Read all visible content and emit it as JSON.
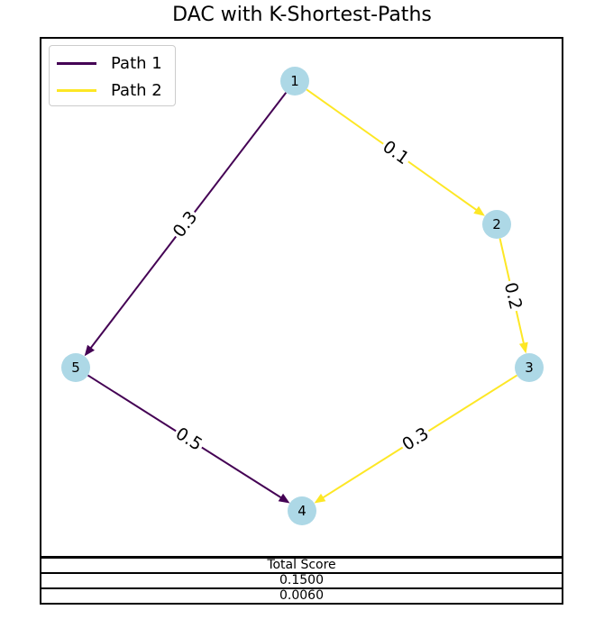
{
  "title": "DAC with K-Shortest-Paths",
  "legend": [
    {
      "label": "Path 1",
      "color": "#440154"
    },
    {
      "label": "Path 2",
      "color": "#fde725"
    }
  ],
  "nodes": [
    {
      "id": "1",
      "label": "1"
    },
    {
      "id": "2",
      "label": "2"
    },
    {
      "id": "3",
      "label": "3"
    },
    {
      "id": "4",
      "label": "4"
    },
    {
      "id": "5",
      "label": "5"
    }
  ],
  "edges": [
    {
      "from": "1",
      "to": "5",
      "weight": "0.3",
      "path": 1
    },
    {
      "from": "5",
      "to": "4",
      "weight": "0.5",
      "path": 1
    },
    {
      "from": "1",
      "to": "2",
      "weight": "0.1",
      "path": 2
    },
    {
      "from": "2",
      "to": "3",
      "weight": "0.2",
      "path": 2
    },
    {
      "from": "3",
      "to": "4",
      "weight": "0.3",
      "path": 2
    }
  ],
  "node_color": "#add8e6",
  "table": {
    "header": "Total Score",
    "rows": [
      "0.1500",
      "0.0060"
    ]
  }
}
